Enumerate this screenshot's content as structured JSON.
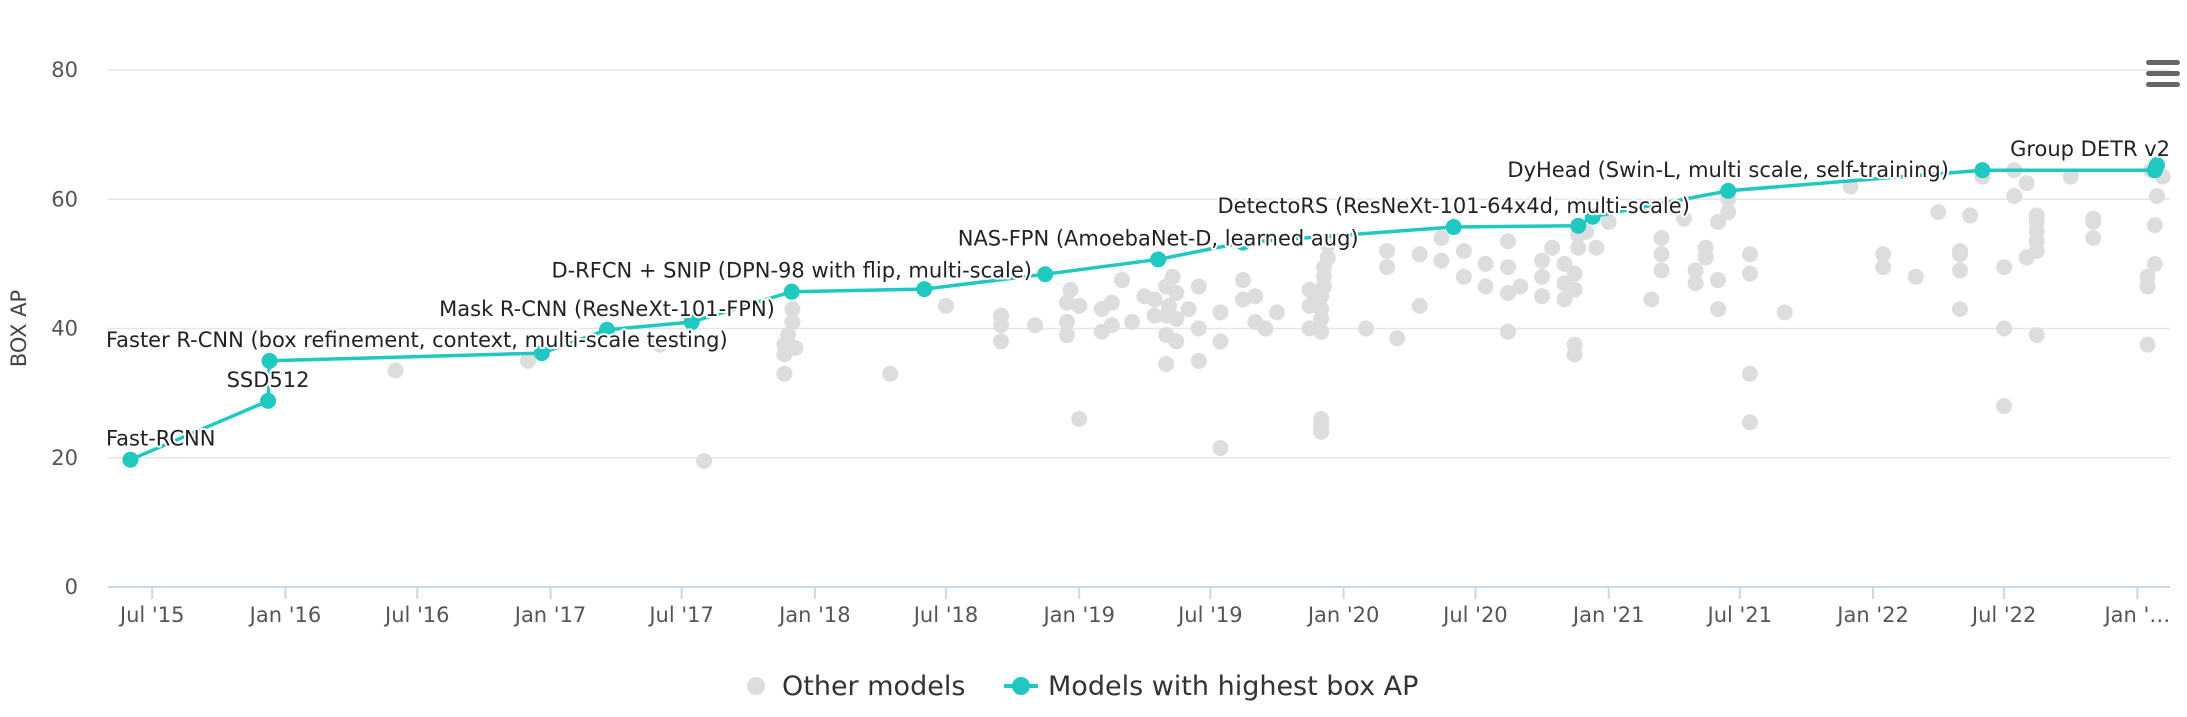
{
  "chart_data": {
    "type": "scatter",
    "ylabel": "BOX AP",
    "ylim": [
      0,
      80
    ],
    "yticks": [
      0,
      20,
      40,
      60,
      80
    ],
    "xlim": [
      "2015-05-01",
      "2023-02-15"
    ],
    "xticks": [
      {
        "date": "2015-07-01",
        "label": "Jul '15"
      },
      {
        "date": "2016-01-01",
        "label": "Jan '16"
      },
      {
        "date": "2016-07-01",
        "label": "Jul '16"
      },
      {
        "date": "2017-01-01",
        "label": "Jan '17"
      },
      {
        "date": "2017-07-01",
        "label": "Jul '17"
      },
      {
        "date": "2018-01-01",
        "label": "Jan '18"
      },
      {
        "date": "2018-07-01",
        "label": "Jul '18"
      },
      {
        "date": "2019-01-01",
        "label": "Jan '19"
      },
      {
        "date": "2019-07-01",
        "label": "Jul '19"
      },
      {
        "date": "2020-01-01",
        "label": "Jan '20"
      },
      {
        "date": "2020-07-01",
        "label": "Jul '20"
      },
      {
        "date": "2021-01-01",
        "label": "Jan '21"
      },
      {
        "date": "2021-07-01",
        "label": "Jul '21"
      },
      {
        "date": "2022-01-01",
        "label": "Jan '22"
      },
      {
        "date": "2022-07-01",
        "label": "Jul '22"
      },
      {
        "date": "2023-01-01",
        "label": "Jan '…"
      }
    ],
    "grid": true,
    "legend_position": "bottom-center",
    "series": [
      {
        "name": "Other models",
        "color": "#dddddd",
        "points": [
          [
            "2016-06-01",
            33.5
          ],
          [
            "2016-12-01",
            35.0
          ],
          [
            "2017-06-01",
            37.5
          ],
          [
            "2017-08-01",
            19.5
          ],
          [
            "2017-11-20",
            33.0
          ],
          [
            "2017-11-20",
            36.0
          ],
          [
            "2017-11-20",
            37.5
          ],
          [
            "2017-11-25",
            39.0
          ],
          [
            "2017-12-01",
            41.0
          ],
          [
            "2017-12-01",
            43.0
          ],
          [
            "2017-12-05",
            37.0
          ],
          [
            "2018-04-15",
            33.0
          ],
          [
            "2018-07-01",
            43.5
          ],
          [
            "2018-09-15",
            38.0
          ],
          [
            "2018-09-15",
            40.5
          ],
          [
            "2018-09-15",
            42.0
          ],
          [
            "2018-11-01",
            40.5
          ],
          [
            "2018-12-15",
            39.0
          ],
          [
            "2018-12-15",
            41.0
          ],
          [
            "2018-12-15",
            44.0
          ],
          [
            "2018-12-20",
            46.0
          ],
          [
            "2019-01-01",
            26.0
          ],
          [
            "2019-01-01",
            43.5
          ],
          [
            "2019-02-01",
            39.5
          ],
          [
            "2019-02-01",
            43.0
          ],
          [
            "2019-02-15",
            40.5
          ],
          [
            "2019-02-15",
            44.0
          ],
          [
            "2019-03-01",
            47.5
          ],
          [
            "2019-03-15",
            41.0
          ],
          [
            "2019-04-01",
            45.0
          ],
          [
            "2019-04-15",
            42.0
          ],
          [
            "2019-04-15",
            44.5
          ],
          [
            "2019-05-01",
            34.5
          ],
          [
            "2019-05-01",
            39.0
          ],
          [
            "2019-05-01",
            42.0
          ],
          [
            "2019-05-01",
            46.5
          ],
          [
            "2019-05-05",
            43.5
          ],
          [
            "2019-05-10",
            48.0
          ],
          [
            "2019-05-15",
            38.0
          ],
          [
            "2019-05-15",
            41.5
          ],
          [
            "2019-05-15",
            45.5
          ],
          [
            "2019-06-01",
            43.0
          ],
          [
            "2019-06-15",
            35.0
          ],
          [
            "2019-06-15",
            40.0
          ],
          [
            "2019-06-15",
            46.5
          ],
          [
            "2019-07-15",
            21.5
          ],
          [
            "2019-07-15",
            38.0
          ],
          [
            "2019-07-15",
            42.5
          ],
          [
            "2019-08-15",
            44.5
          ],
          [
            "2019-08-15",
            47.5
          ],
          [
            "2019-09-01",
            41.0
          ],
          [
            "2019-09-01",
            45.0
          ],
          [
            "2019-09-15",
            40.0
          ],
          [
            "2019-10-01",
            42.5
          ],
          [
            "2019-11-15",
            40.0
          ],
          [
            "2019-11-15",
            43.5
          ],
          [
            "2019-11-15",
            46.0
          ],
          [
            "2019-11-20",
            44.0
          ],
          [
            "2019-12-01",
            24.0
          ],
          [
            "2019-12-01",
            25.0
          ],
          [
            "2019-12-01",
            26.0
          ],
          [
            "2019-12-01",
            39.5
          ],
          [
            "2019-12-01",
            41.5
          ],
          [
            "2019-12-01",
            43.0
          ],
          [
            "2019-12-01",
            45.0
          ],
          [
            "2019-12-05",
            46.5
          ],
          [
            "2019-12-05",
            48.0
          ],
          [
            "2019-12-05",
            49.5
          ],
          [
            "2019-12-10",
            51.0
          ],
          [
            "2019-12-10",
            53.0
          ],
          [
            "2020-02-01",
            40.0
          ],
          [
            "2020-03-01",
            49.5
          ],
          [
            "2020-03-01",
            52.0
          ],
          [
            "2020-03-15",
            38.5
          ],
          [
            "2020-04-15",
            43.5
          ],
          [
            "2020-04-15",
            51.5
          ],
          [
            "2020-05-15",
            50.5
          ],
          [
            "2020-05-15",
            54.0
          ],
          [
            "2020-06-15",
            52.0
          ],
          [
            "2020-06-15",
            48.0
          ],
          [
            "2020-07-15",
            46.5
          ],
          [
            "2020-07-15",
            50.0
          ],
          [
            "2020-08-15",
            39.5
          ],
          [
            "2020-08-15",
            45.5
          ],
          [
            "2020-08-15",
            49.5
          ],
          [
            "2020-08-15",
            53.5
          ],
          [
            "2020-09-01",
            46.5
          ],
          [
            "2020-10-01",
            45.0
          ],
          [
            "2020-10-01",
            48.0
          ],
          [
            "2020-10-01",
            50.5
          ],
          [
            "2020-10-15",
            52.5
          ],
          [
            "2020-11-01",
            44.5
          ],
          [
            "2020-11-01",
            47.0
          ],
          [
            "2020-11-01",
            50.0
          ],
          [
            "2020-11-15",
            36.0
          ],
          [
            "2020-11-15",
            37.5
          ],
          [
            "2020-11-15",
            46.0
          ],
          [
            "2020-11-15",
            48.5
          ],
          [
            "2020-11-20",
            52.5
          ],
          [
            "2020-11-20",
            54.5
          ],
          [
            "2020-12-01",
            55.0
          ],
          [
            "2020-12-15",
            52.5
          ],
          [
            "2021-01-01",
            56.5
          ],
          [
            "2021-03-01",
            44.5
          ],
          [
            "2021-03-15",
            49.0
          ],
          [
            "2021-03-15",
            51.5
          ],
          [
            "2021-03-15",
            54.0
          ],
          [
            "2021-04-15",
            57.0
          ],
          [
            "2021-05-01",
            47.0
          ],
          [
            "2021-05-01",
            49.0
          ],
          [
            "2021-05-15",
            51.0
          ],
          [
            "2021-05-15",
            52.5
          ],
          [
            "2021-06-01",
            43.0
          ],
          [
            "2021-06-01",
            47.5
          ],
          [
            "2021-06-01",
            56.5
          ],
          [
            "2021-06-15",
            58.0
          ],
          [
            "2021-06-15",
            60.0
          ],
          [
            "2021-07-15",
            25.5
          ],
          [
            "2021-07-15",
            33.0
          ],
          [
            "2021-07-15",
            48.5
          ],
          [
            "2021-07-15",
            51.5
          ],
          [
            "2021-09-01",
            42.5
          ],
          [
            "2021-12-01",
            62.0
          ],
          [
            "2022-01-15",
            49.5
          ],
          [
            "2022-01-15",
            51.5
          ],
          [
            "2022-03-01",
            48.0
          ],
          [
            "2022-04-01",
            58.0
          ],
          [
            "2022-05-01",
            43.0
          ],
          [
            "2022-05-01",
            49.0
          ],
          [
            "2022-05-01",
            51.5
          ],
          [
            "2022-05-01",
            52.0
          ],
          [
            "2022-05-15",
            57.5
          ],
          [
            "2022-06-01",
            63.5
          ],
          [
            "2022-07-01",
            28.0
          ],
          [
            "2022-07-01",
            40.0
          ],
          [
            "2022-07-01",
            49.5
          ],
          [
            "2022-07-15",
            60.5
          ],
          [
            "2022-07-15",
            64.5
          ],
          [
            "2022-08-01",
            51.0
          ],
          [
            "2022-08-01",
            62.5
          ],
          [
            "2022-08-15",
            39.0
          ],
          [
            "2022-08-15",
            52.0
          ],
          [
            "2022-08-15",
            53.5
          ],
          [
            "2022-08-15",
            55.0
          ],
          [
            "2022-08-15",
            56.5
          ],
          [
            "2022-08-15",
            57.5
          ],
          [
            "2022-10-01",
            63.5
          ],
          [
            "2022-11-01",
            54.0
          ],
          [
            "2022-11-01",
            56.5
          ],
          [
            "2022-11-01",
            57.0
          ],
          [
            "2023-01-15",
            37.5
          ],
          [
            "2023-01-15",
            46.5
          ],
          [
            "2023-01-15",
            48.0
          ],
          [
            "2023-01-25",
            50.0
          ],
          [
            "2023-01-25",
            56.0
          ],
          [
            "2023-01-28",
            60.5
          ],
          [
            "2023-02-05",
            63.5
          ],
          [
            "2023-01-20",
            64.5
          ]
        ]
      },
      {
        "name": "Models with highest box AP",
        "color": "#1fc8c0",
        "points": [
          {
            "date": "2015-06-01",
            "y": 19.7,
            "label": "Fast-RCNN"
          },
          {
            "date": "2015-12-08",
            "y": 28.8,
            "label": "SSD512"
          },
          {
            "date": "2015-12-10",
            "y": 35.0,
            "label": "Faster R-CNN (box refinement, context, multi-scale testing)"
          },
          {
            "date": "2016-12-20",
            "y": 36.2,
            "label": ""
          },
          {
            "date": "2017-03-20",
            "y": 39.8,
            "label": "Mask R-CNN (ResNeXt-101-FPN)"
          },
          {
            "date": "2017-07-15",
            "y": 41.0,
            "label": ""
          },
          {
            "date": "2017-11-30",
            "y": 45.7,
            "label": "D-RFCN + SNIP (DPN-98 with flip, multi-scale)"
          },
          {
            "date": "2018-06-01",
            "y": 46.1,
            "label": ""
          },
          {
            "date": "2018-11-15",
            "y": 48.4,
            "label": ""
          },
          {
            "date": "2019-04-20",
            "y": 50.7,
            "label": "NAS-FPN (AmoebaNet-D, learned aug)"
          },
          {
            "date": "2019-08-15",
            "y": 53.3,
            "label": ""
          },
          {
            "date": "2020-06-01",
            "y": 55.7,
            "label": "DetectoRS (ResNeXt-101-64x4d, multi-scale)"
          },
          {
            "date": "2020-11-20",
            "y": 55.9,
            "label": ""
          },
          {
            "date": "2020-12-10",
            "y": 57.3,
            "label": ""
          },
          {
            "date": "2021-06-15",
            "y": 61.3,
            "label": "DyHead (Swin-L, multi scale, self-training)"
          },
          {
            "date": "2022-06-01",
            "y": 64.5,
            "label": ""
          },
          {
            "date": "2023-01-25",
            "y": 64.5,
            "label": "Group DETR v2"
          },
          {
            "date": "2023-01-28",
            "y": 65.3,
            "label": ""
          }
        ]
      }
    ]
  }
}
